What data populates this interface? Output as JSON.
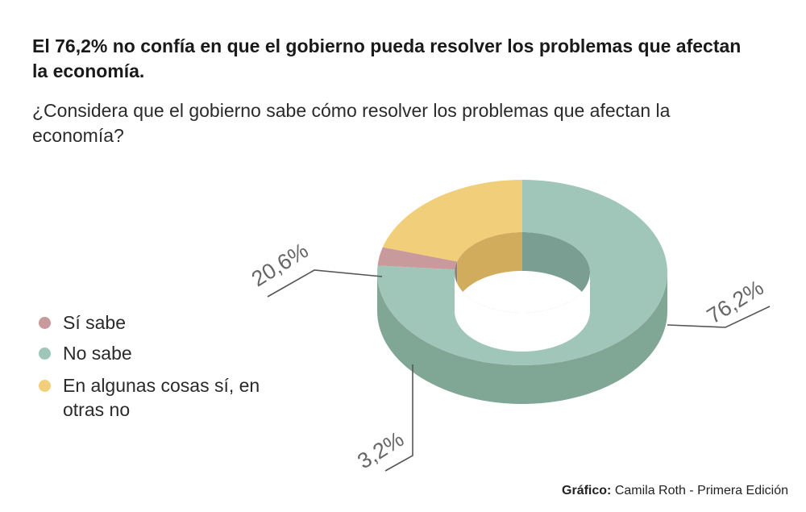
{
  "title": "El 76,2% no confía en que el gobierno pueda resolver los problemas que afectan la economía.",
  "subtitle": "¿Considera que el gobierno sabe cómo resolver los problemas que afectan la economía?",
  "chart_data": {
    "type": "pie",
    "title": "El 76,2% no confía en que el gobierno pueda resolver los problemas que afectan la economía.",
    "subtitle": "¿Considera que el gobierno sabe cómo resolver los problemas que afectan la economía?",
    "categories": [
      "Sí sabe",
      "No sabe",
      "En algunas cosas sí, en otras no"
    ],
    "values": [
      3.2,
      76.2,
      20.6
    ],
    "labels": [
      "3,2%",
      "76,2%",
      "20,6%"
    ],
    "colors": {
      "top": [
        "#c99a9b",
        "#9fc6b9",
        "#f1ce7a"
      ],
      "side": [
        "#a47f82",
        "#80a695",
        "#e0b966"
      ],
      "inner": [
        "#8e8077",
        "#7a9f92",
        "#d2ac5d"
      ]
    },
    "legend_position": "left"
  },
  "legend": [
    {
      "label": "Sí sabe",
      "color": "#c99a9b"
    },
    {
      "label": "No sabe",
      "color": "#9fc6b9"
    },
    {
      "label": "En algunas cosas sí, en otras no",
      "color": "#f1ce7a"
    }
  ],
  "credit": {
    "label": "Gráfico:",
    "text": " Camila Roth - Primera Edición"
  }
}
